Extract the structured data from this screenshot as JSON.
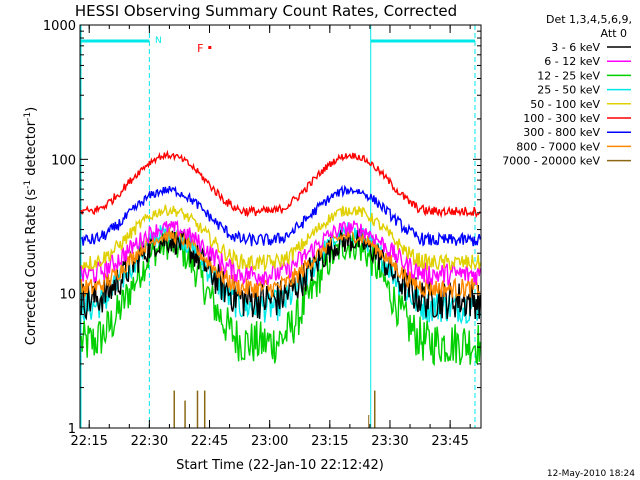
{
  "chart_data": {
    "type": "line",
    "title": "HESSI Observing Summary Count Rates, Corrected",
    "xlabel": "Start Time (22-Jan-10 22:12:42)",
    "ylabel_main": "Corrected Count Rate (s",
    "ylabel_sup1": "-1",
    "ylabel_mid": " detector",
    "ylabel_sup2": "-1",
    "ylabel_end": ")",
    "yscale": "log",
    "ylim": [
      1,
      1000
    ],
    "xlim_minutes": [
      0,
      100
    ],
    "x_ticks": [
      "22:15",
      "22:30",
      "22:45",
      "23:00",
      "23:15",
      "23:30",
      "23:45"
    ],
    "x_tick_minutes": [
      2.3,
      17.3,
      32.3,
      47.3,
      62.3,
      77.3,
      92.3
    ],
    "y_ticks": [
      "1",
      "10",
      "100",
      "1000"
    ],
    "y_tick_values": [
      1,
      10,
      100,
      1000
    ],
    "legend_header": "Det 1,3,4,5,6,9,",
    "legend_header2": "Att 0",
    "series": [
      {
        "name": "3 - 6 keV",
        "color": "#000000",
        "min": 9,
        "max": 25,
        "noise": 0.12
      },
      {
        "name": "6 - 12 keV",
        "color": "#ff00ff",
        "min": 14,
        "max": 31,
        "noise": 0.07
      },
      {
        "name": "12 - 25 keV",
        "color": "#00d000",
        "min": 4.3,
        "max": 23,
        "noise": 0.14
      },
      {
        "name": "25 - 50 keV",
        "color": "#00e8e8",
        "min": 8,
        "max": 28,
        "noise": 0.1
      },
      {
        "name": "50 - 100 keV",
        "color": "#e0d000",
        "min": 17,
        "max": 42,
        "noise": 0.05
      },
      {
        "name": "100 - 300 keV",
        "color": "#ff0000",
        "min": 41,
        "max": 107,
        "noise": 0.03
      },
      {
        "name": "300 - 800 keV",
        "color": "#0000ff",
        "min": 25,
        "max": 59,
        "noise": 0.04
      },
      {
        "name": "800 - 7000 keV",
        "color": "#ff8800",
        "min": 11,
        "max": 27,
        "noise": 0.06
      },
      {
        "name": "7000 - 20000 keV",
        "color": "#8b6914",
        "min": 1,
        "max": 1,
        "noise": 0
      }
    ],
    "orbit_peaks_minutes": [
      22,
      67.5
    ],
    "orbit_period_minutes": 45.5,
    "annotations": {
      "night_marker": "N",
      "flare_marker": "F",
      "night_start_minutes": 17.3,
      "night_end_minutes": 98.5,
      "saa_line_minutes": 72.5,
      "flare_minutes": 30
    }
  },
  "footer_date": "12-May-2010 18:24"
}
